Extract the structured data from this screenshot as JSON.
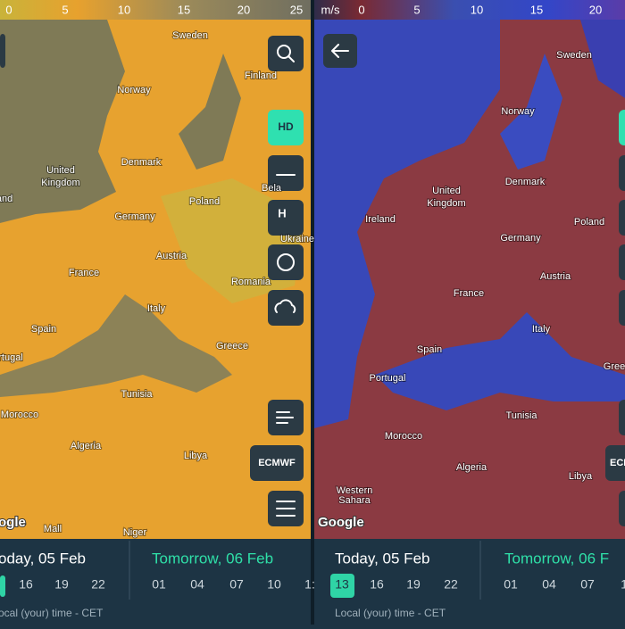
{
  "left_panel": {
    "scale_labels": [
      "0",
      "5",
      "10",
      "15",
      "20",
      "25"
    ],
    "map_labels": [
      "Sweden",
      "Finland",
      "Norway",
      "Denmark",
      "United",
      "Kingdom",
      "and",
      "Bela",
      "Poland",
      "Germany",
      "Ukraine",
      "Austria",
      "France",
      "Romania",
      "Italy",
      "Spain",
      "rtugal",
      "Greece",
      "Tunisia",
      "Morocco",
      "Algeria",
      "Libya",
      "Mall",
      "Niger"
    ],
    "attribution": "ogle",
    "buttons": {
      "hd": "HD",
      "model": "ECMWF"
    },
    "timeline": {
      "today": "oday, 05 Feb",
      "tomorrow": "Tomorrow, 06 Feb",
      "today_hours": [
        "16",
        "19",
        "22"
      ],
      "tomorrow_hours": [
        "01",
        "04",
        "07",
        "10",
        "1:"
      ],
      "footer": "ocal (your) time - CET"
    }
  },
  "right_panel": {
    "scale_unit": "m/s",
    "scale_labels": [
      "0",
      "5",
      "10",
      "15",
      "20"
    ],
    "map_labels": [
      "Sweden",
      "Norway",
      "Denmark",
      "United",
      "Kingdom",
      "Ireland",
      "Poland",
      "Germany",
      "France",
      "Austria",
      "Italy",
      "Spain",
      "Portugal",
      "Gree",
      "Tunisia",
      "Morocco",
      "Algeria",
      "Libya",
      "Western",
      "Sahara"
    ],
    "attribution": "Google",
    "buttons": {
      "model": "ECI"
    },
    "timeline": {
      "today": "Today, 05 Feb",
      "tomorrow": "Tomorrow, 06 F",
      "today_hours": [
        "13",
        "16",
        "19",
        "22"
      ],
      "tomorrow_hours": [
        "01",
        "04",
        "07",
        "1"
      ],
      "footer": "Local (your) time - CET"
    }
  }
}
